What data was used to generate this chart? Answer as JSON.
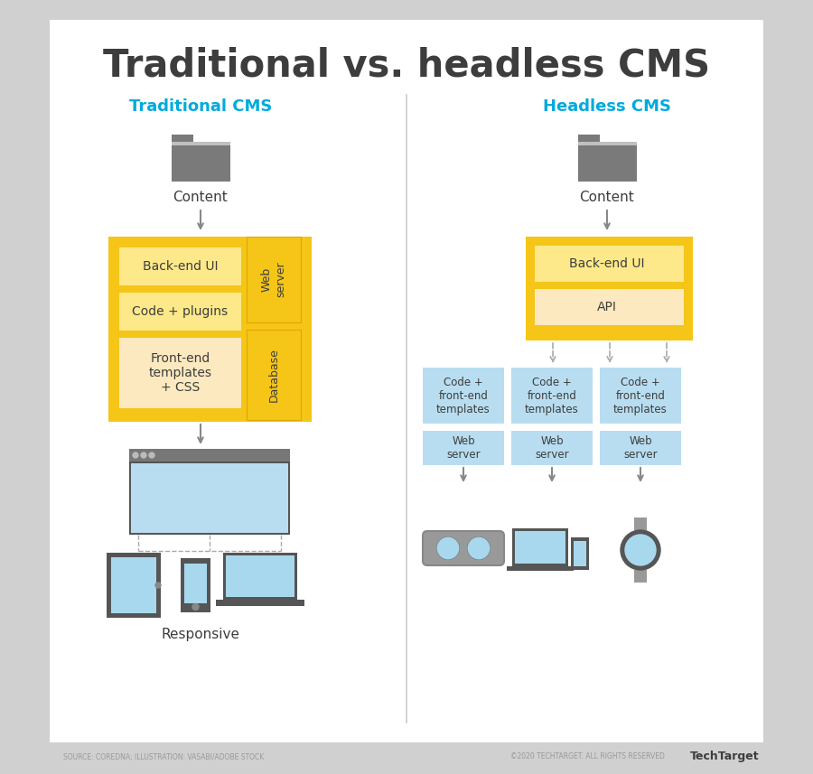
{
  "title": "Traditional vs. headless CMS",
  "title_color": "#3d3d3d",
  "title_fontsize": 30,
  "bg_outer": "#d0d0d0",
  "bg_inner": "#ffffff",
  "cyan_color": "#00aadd",
  "yellow_outer": "#f5c518",
  "yellow_inner": "#fde98a",
  "peach_inner": "#fde9c0",
  "blue_fill": "#b8ddf0",
  "blue_device": "#a8d8ee",
  "gray_folder": "#7a7a7a",
  "gray_dark": "#555555",
  "arrow_color": "#888888",
  "text_dark": "#3d3d3d",
  "source_text": "SOURCE: COREDNA; ILLUSTRATION: VASABI/ADOBE STOCK",
  "copy_text": "©2020 TECHTARGET. ALL RIGHTS RESERVED",
  "brand_text": "TechTarget"
}
